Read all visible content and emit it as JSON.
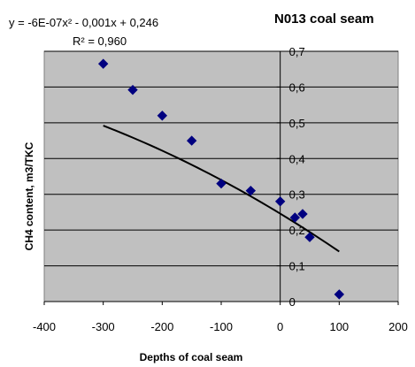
{
  "chart_data": {
    "type": "scatter",
    "title": "N013 coal seam",
    "xlabel": "Depths of coal seam",
    "ylabel": "CH4  content, m3/TKC",
    "xlim": [
      -400,
      200
    ],
    "ylim": [
      0,
      0.7
    ],
    "x_ticks": [
      -400,
      -300,
      -200,
      -100,
      0,
      100,
      200
    ],
    "x_tick_labels": [
      "-400",
      "-300",
      "-200",
      "-100",
      "0",
      "100",
      "200"
    ],
    "y_ticks": [
      0,
      0.1,
      0.2,
      0.3,
      0.4,
      0.5,
      0.6,
      0.7
    ],
    "y_tick_labels": [
      "0",
      "0,1",
      "0,2",
      "0,3",
      "0,4",
      "0,5",
      "0,6",
      "0,7"
    ],
    "grid": true,
    "plot_background": "#c0c0c0",
    "marker_color": "#000080",
    "trendline_color": "#000000",
    "points": [
      {
        "x": -300,
        "y": 0.665
      },
      {
        "x": -250,
        "y": 0.592
      },
      {
        "x": -200,
        "y": 0.52
      },
      {
        "x": -150,
        "y": 0.45
      },
      {
        "x": -100,
        "y": 0.33
      },
      {
        "x": -50,
        "y": 0.31
      },
      {
        "x": 0,
        "y": 0.28
      },
      {
        "x": 25,
        "y": 0.235
      },
      {
        "x": 38,
        "y": 0.245
      },
      {
        "x": 50,
        "y": 0.18
      },
      {
        "x": 100,
        "y": 0.02
      }
    ],
    "trendline": {
      "type": "polynomial",
      "coefficients": [
        -6e-07,
        -0.001,
        0.246
      ],
      "x_range": [
        -300,
        100
      ],
      "equation_label": "y = -6E-07x² - 0,001x + 0,246",
      "r2_label": "R² = 0,960"
    }
  }
}
